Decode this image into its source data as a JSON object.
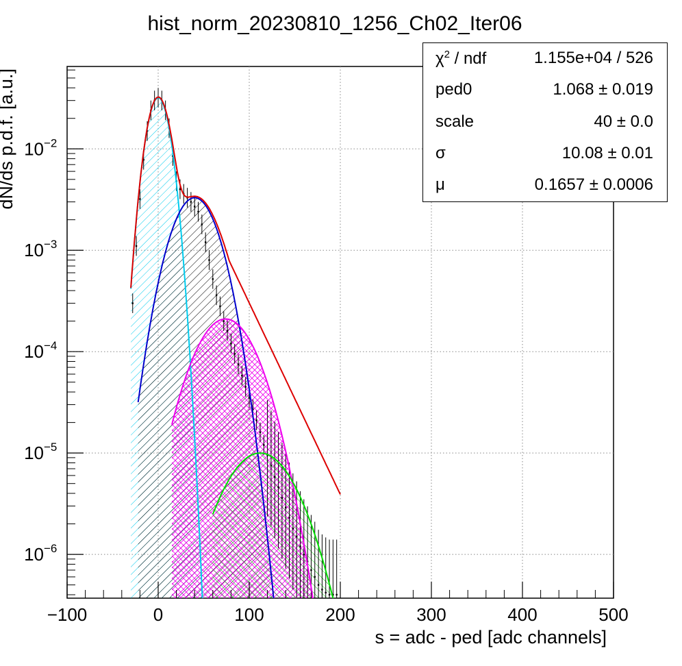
{
  "chart_data": {
    "type": "line",
    "title": "hist_norm_20230810_1256_Ch02_Iter06",
    "xlabel": "s = adc - ped [adc channels]",
    "ylabel": "dN/ds p.d.f. [a.u.]",
    "xlim": [
      -100,
      500
    ],
    "ylim": [
      3.7e-07,
      0.065
    ],
    "yscale": "log",
    "grid": true,
    "x_ticks": [
      -100,
      0,
      100,
      200,
      300,
      400,
      500
    ],
    "x_tick_labels": [
      "−100",
      "0",
      "100",
      "200",
      "300",
      "400",
      "500"
    ],
    "y_ticks": [
      {
        "value": 0.01,
        "mantissa": "10",
        "exponent": "−2"
      },
      {
        "value": 0.001,
        "mantissa": "10",
        "exponent": "−3"
      },
      {
        "value": 0.0001,
        "mantissa": "10",
        "exponent": "−4"
      },
      {
        "value": 1e-05,
        "mantissa": "10",
        "exponent": "−5"
      },
      {
        "value": 1e-06,
        "mantissa": "10",
        "exponent": "−6"
      }
    ],
    "fit_params": {
      "ped0": 1.068,
      "scale": 40,
      "sigma": 10.08,
      "mu": 0.1657
    },
    "components": [
      {
        "color": "#00ccee",
        "hatch": "cyan-diag",
        "peak_x": 0,
        "peak_y": 0.032,
        "start_x": -30,
        "end_x": 50
      },
      {
        "color": "#0000cc",
        "hatch": "black-diag",
        "peak_x": 40,
        "peak_y": 0.0033,
        "start_x": -22,
        "end_x": 130
      },
      {
        "color": "#ee00ee",
        "hatch": "magenta-cross",
        "peak_x": 74,
        "peak_y": 0.00021,
        "start_x": 15,
        "end_x": 175
      },
      {
        "color": "#00dd00",
        "hatch": "green-diag",
        "peak_x": 112,
        "peak_y": 1e-05,
        "start_x": 60,
        "end_x": 200
      }
    ],
    "total_fit": {
      "color": "#dd0000",
      "from_x": -30,
      "to_x": 200
    },
    "data_points": {
      "x": [
        -28,
        -24,
        -20,
        -16,
        -12,
        -8,
        -4,
        0,
        4,
        8,
        12,
        16,
        20,
        24,
        28,
        32,
        36,
        40,
        44,
        48,
        52,
        56,
        60,
        64,
        68,
        72,
        76,
        80,
        84,
        88,
        92,
        96,
        100,
        104,
        108,
        112,
        116,
        120,
        124,
        128,
        132,
        136,
        140,
        144,
        148,
        152,
        156,
        160,
        164,
        168,
        172,
        176,
        180,
        184,
        188,
        192,
        196
      ],
      "y": [
        0.0003,
        0.0011,
        0.0032,
        0.0078,
        0.015,
        0.024,
        0.03,
        0.032,
        0.03,
        0.024,
        0.016,
        0.0085,
        0.0048,
        0.004,
        0.0036,
        0.0033,
        0.003,
        0.0027,
        0.0024,
        0.0018,
        0.0012,
        0.0008,
        0.00052,
        0.00036,
        0.00028,
        0.0002,
        0.00016,
        0.00012,
        9.5e-05,
        7.5e-05,
        5.8e-05,
        4.5e-05,
        3.5e-05,
        2.7e-05,
        2.1e-05,
        1.6e-05,
        1.2e-05,
        9.5e-06,
        7.5e-06,
        5.8e-06,
        4.6e-06,
        3.6e-06,
        2.9e-06,
        2.3e-06,
        1.8e-06,
        1.5e-06,
        1.2e-06,
        1e-06,
        8.5e-07,
        7e-07,
        6e-07,
        5e-07,
        4.5e-07,
        4.2e-07,
        4e-07,
        4e-07,
        4e-07
      ]
    }
  },
  "stats_box": {
    "rows": [
      {
        "label": "χ",
        "label_sup": "2",
        "label_rest": " / ndf",
        "value": "1.155e+04 / 526"
      },
      {
        "label": "ped0",
        "value": "1.068 ± 0.019"
      },
      {
        "label": "scale",
        "value": "40 ± 0.0"
      },
      {
        "label": "σ",
        "value": "10.08 ± 0.01"
      },
      {
        "label": "μ",
        "value": "0.1657 ± 0.0006"
      }
    ]
  }
}
